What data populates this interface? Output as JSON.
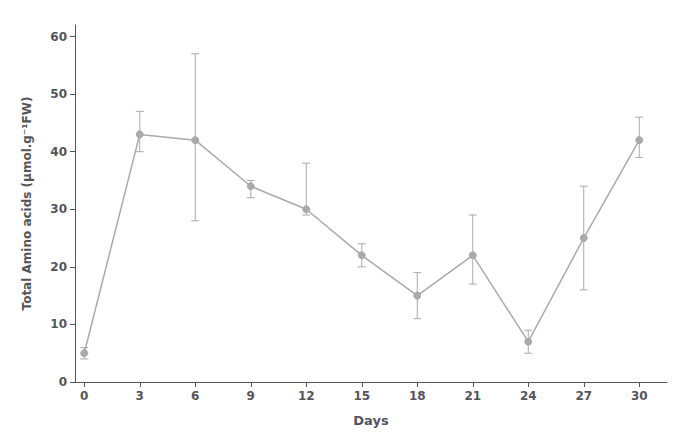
{
  "chart_data": {
    "type": "line",
    "x": [
      0,
      3,
      6,
      9,
      12,
      15,
      18,
      21,
      24,
      27,
      30
    ],
    "values": [
      5,
      43,
      42,
      34,
      30,
      22,
      15,
      22,
      7,
      25,
      42
    ],
    "yerr_lower": [
      1,
      3,
      14,
      2,
      1,
      2,
      4,
      5,
      2,
      9,
      3
    ],
    "yerr_upper": [
      1,
      4,
      15,
      1,
      8,
      2,
      4,
      7,
      2,
      9,
      4
    ],
    "xlabel": "Days",
    "ylabel": "Total Amino acids (μmol.g⁻¹FW)",
    "xlim": [
      -0.5,
      31.5
    ],
    "ylim": [
      0,
      62
    ],
    "xticks": [
      0,
      3,
      6,
      9,
      12,
      15,
      18,
      21,
      24,
      27,
      30
    ],
    "yticks": [
      0,
      10,
      20,
      30,
      40,
      50,
      60
    ],
    "color": "#aaaaaa",
    "marker": "circle",
    "line_style": "solid",
    "grid": false
  }
}
